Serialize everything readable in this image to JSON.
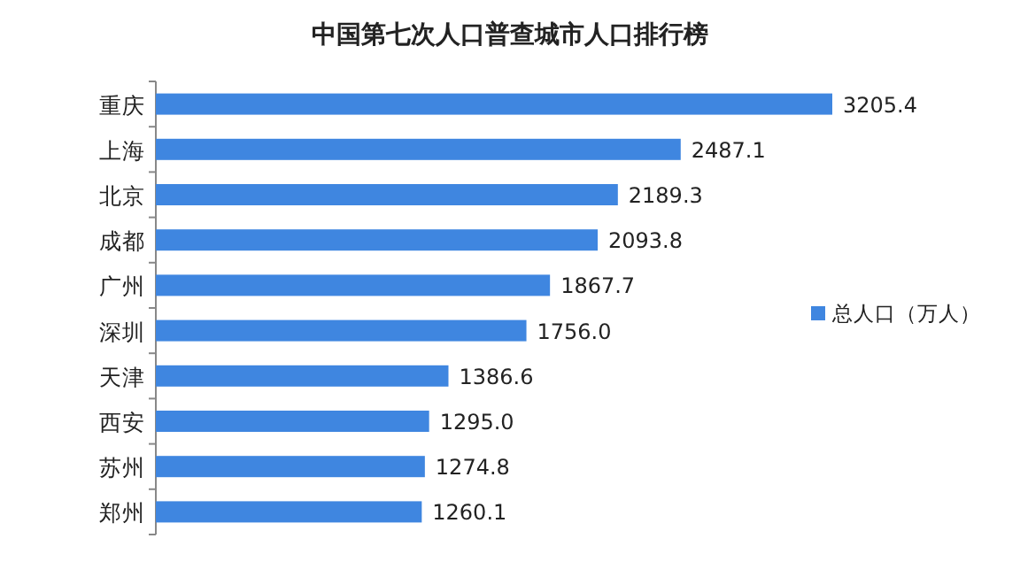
{
  "chart_data": {
    "type": "bar",
    "orientation": "horizontal",
    "title": "中国第七次人口普查城市人口排行榜",
    "categories": [
      "重庆",
      "上海",
      "北京",
      "成都",
      "广州",
      "深圳",
      "天津",
      "西安",
      "苏州",
      "郑州"
    ],
    "series": [
      {
        "name": "总人口（万人）",
        "color": "#3f86e0",
        "values": [
          3205.4,
          2487.1,
          2189.3,
          2093.8,
          1867.7,
          1756.0,
          1386.6,
          1295.0,
          1274.8,
          1260.1
        ],
        "value_labels": [
          "3205.4",
          "2487.1",
          "2189.3",
          "2093.8",
          "1867.7",
          "1756.0",
          "1386.6",
          "1295.0",
          "1274.8",
          "1260.1"
        ]
      }
    ],
    "legend": "right"
  }
}
